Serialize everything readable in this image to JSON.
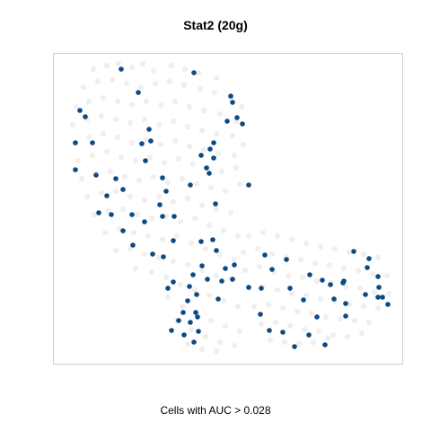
{
  "chart_data": {
    "type": "scatter",
    "title": "Stat2 (20g)",
    "caption": "Cells with AUC > 0.028",
    "grid": false,
    "colors": {
      "background_cells": "#eaeaea",
      "high_auc_cells": "#0c4a84"
    },
    "series": [
      {
        "role": "cells_below_threshold",
        "points": [
          [
            103,
            76
          ],
          [
            118,
            72
          ],
          [
            131,
            70
          ],
          [
            146,
            74
          ],
          [
            158,
            70
          ],
          [
            170,
            78
          ],
          [
            190,
            72
          ],
          [
            205,
            76
          ],
          [
            220,
            80
          ],
          [
            240,
            86
          ],
          [
            92,
            96
          ],
          [
            108,
            90
          ],
          [
            124,
            88
          ],
          [
            140,
            92
          ],
          [
            156,
            96
          ],
          [
            172,
            92
          ],
          [
            188,
            90
          ],
          [
            204,
            94
          ],
          [
            222,
            98
          ],
          [
            238,
            102
          ],
          [
            256,
            108
          ],
          [
            268,
            118
          ],
          [
            84,
            118
          ],
          [
            98,
            112
          ],
          [
            114,
            108
          ],
          [
            130,
            112
          ],
          [
            146,
            116
          ],
          [
            162,
            112
          ],
          [
            178,
            116
          ],
          [
            194,
            112
          ],
          [
            210,
            118
          ],
          [
            226,
            122
          ],
          [
            244,
            126
          ],
          [
            262,
            134
          ],
          [
            80,
            138
          ],
          [
            96,
            132
          ],
          [
            112,
            128
          ],
          [
            128,
            132
          ],
          [
            144,
            136
          ],
          [
            160,
            132
          ],
          [
            176,
            138
          ],
          [
            192,
            134
          ],
          [
            208,
            140
          ],
          [
            224,
            144
          ],
          [
            240,
            148
          ],
          [
            258,
            150
          ],
          [
            270,
            160
          ],
          [
            82,
            158
          ],
          [
            98,
            152
          ],
          [
            114,
            148
          ],
          [
            130,
            152
          ],
          [
            146,
            158
          ],
          [
            162,
            154
          ],
          [
            178,
            160
          ],
          [
            194,
            156
          ],
          [
            210,
            162
          ],
          [
            226,
            166
          ],
          [
            242,
            170
          ],
          [
            260,
            172
          ],
          [
            86,
            178
          ],
          [
            102,
            172
          ],
          [
            118,
            168
          ],
          [
            134,
            174
          ],
          [
            150,
            178
          ],
          [
            166,
            174
          ],
          [
            182,
            180
          ],
          [
            198,
            176
          ],
          [
            214,
            182
          ],
          [
            230,
            186
          ],
          [
            246,
            190
          ],
          [
            262,
            186
          ],
          [
            90,
            198
          ],
          [
            106,
            192
          ],
          [
            122,
            190
          ],
          [
            138,
            196
          ],
          [
            154,
            200
          ],
          [
            170,
            196
          ],
          [
            186,
            202
          ],
          [
            202,
            198
          ],
          [
            218,
            204
          ],
          [
            234,
            208
          ],
          [
            250,
            212
          ],
          [
            266,
            204
          ],
          [
            96,
            218
          ],
          [
            112,
            214
          ],
          [
            128,
            212
          ],
          [
            144,
            218
          ],
          [
            160,
            222
          ],
          [
            176,
            218
          ],
          [
            192,
            224
          ],
          [
            208,
            220
          ],
          [
            224,
            228
          ],
          [
            240,
            232
          ],
          [
            256,
            236
          ],
          [
            104,
            238
          ],
          [
            120,
            234
          ],
          [
            136,
            232
          ],
          [
            152,
            238
          ],
          [
            168,
            242
          ],
          [
            184,
            240
          ],
          [
            200,
            246
          ],
          [
            216,
            242
          ],
          [
            232,
            250
          ],
          [
            248,
            256
          ],
          [
            264,
            262
          ],
          [
            116,
            258
          ],
          [
            132,
            254
          ],
          [
            148,
            258
          ],
          [
            164,
            262
          ],
          [
            180,
            266
          ],
          [
            196,
            262
          ],
          [
            212,
            270
          ],
          [
            228,
            276
          ],
          [
            244,
            282
          ],
          [
            260,
            288
          ],
          [
            128,
            278
          ],
          [
            144,
            276
          ],
          [
            160,
            282
          ],
          [
            176,
            286
          ],
          [
            192,
            290
          ],
          [
            208,
            294
          ],
          [
            224,
            300
          ],
          [
            240,
            306
          ],
          [
            256,
            310
          ],
          [
            150,
            298
          ],
          [
            168,
            302
          ],
          [
            184,
            308
          ],
          [
            200,
            316
          ],
          [
            216,
            322
          ],
          [
            232,
            328
          ],
          [
            248,
            334
          ],
          [
            264,
            340
          ],
          [
            186,
            330
          ],
          [
            202,
            340
          ],
          [
            218,
            348
          ],
          [
            234,
            356
          ],
          [
            250,
            362
          ],
          [
            266,
            368
          ],
          [
            196,
            356
          ],
          [
            212,
            366
          ],
          [
            228,
            374
          ],
          [
            244,
            380
          ],
          [
            260,
            384
          ],
          [
            208,
            382
          ],
          [
            224,
            388
          ],
          [
            240,
            390
          ],
          [
            276,
            262
          ],
          [
            292,
            258
          ],
          [
            308,
            262
          ],
          [
            324,
            266
          ],
          [
            340,
            270
          ],
          [
            356,
            274
          ],
          [
            372,
            276
          ],
          [
            388,
            280
          ],
          [
            404,
            282
          ],
          [
            420,
            286
          ],
          [
            270,
            280
          ],
          [
            286,
            276
          ],
          [
            302,
            282
          ],
          [
            318,
            286
          ],
          [
            334,
            288
          ],
          [
            350,
            292
          ],
          [
            366,
            294
          ],
          [
            382,
            298
          ],
          [
            398,
            300
          ],
          [
            414,
            304
          ],
          [
            430,
            306
          ],
          [
            272,
            300
          ],
          [
            288,
            296
          ],
          [
            304,
            302
          ],
          [
            320,
            306
          ],
          [
            336,
            308
          ],
          [
            352,
            312
          ],
          [
            368,
            314
          ],
          [
            384,
            318
          ],
          [
            400,
            320
          ],
          [
            416,
            324
          ],
          [
            432,
            326
          ],
          [
            276,
            320
          ],
          [
            292,
            318
          ],
          [
            308,
            322
          ],
          [
            324,
            326
          ],
          [
            340,
            328
          ],
          [
            356,
            332
          ],
          [
            372,
            334
          ],
          [
            388,
            338
          ],
          [
            404,
            340
          ],
          [
            420,
            342
          ],
          [
            282,
            340
          ],
          [
            298,
            338
          ],
          [
            314,
            342
          ],
          [
            330,
            346
          ],
          [
            346,
            348
          ],
          [
            362,
            352
          ],
          [
            378,
            354
          ],
          [
            394,
            356
          ],
          [
            410,
            358
          ],
          [
            290,
            360
          ],
          [
            306,
            358
          ],
          [
            322,
            362
          ],
          [
            338,
            366
          ],
          [
            354,
            368
          ],
          [
            370,
            372
          ],
          [
            386,
            374
          ],
          [
            402,
            370
          ],
          [
            300,
            378
          ],
          [
            316,
            380
          ],
          [
            332,
            382
          ],
          [
            348,
            380
          ],
          [
            364,
            376
          ]
        ]
      },
      {
        "role": "cells_above_threshold",
        "points": [
          [
            134,
            76
          ],
          [
            215,
            80
          ],
          [
            153,
            102
          ],
          [
            88,
            122
          ],
          [
            256,
            106
          ],
          [
            258,
            113
          ],
          [
            94,
            129
          ],
          [
            263,
            130
          ],
          [
            269,
            137
          ],
          [
            252,
            134
          ],
          [
            165,
            143
          ],
          [
            167,
            156
          ],
          [
            157,
            159
          ],
          [
            83,
            158
          ],
          [
            102,
            158
          ],
          [
            237,
            158
          ],
          [
            233,
            165
          ],
          [
            223,
            172
          ],
          [
            237,
            175
          ],
          [
            229,
            186
          ],
          [
            161,
            178
          ],
          [
            83,
            188
          ],
          [
            232,
            192
          ],
          [
            106,
            194
          ],
          [
            180,
            197
          ],
          [
            211,
            205
          ],
          [
            128,
            198
          ],
          [
            136,
            210
          ],
          [
            184,
            212
          ],
          [
            276,
            205
          ],
          [
            118,
            217
          ],
          [
            109,
            236
          ],
          [
            123,
            238
          ],
          [
            146,
            238
          ],
          [
            160,
            246
          ],
          [
            180,
            240
          ],
          [
            193,
            240
          ],
          [
            177,
            227
          ],
          [
            239,
            226
          ],
          [
            136,
            256
          ],
          [
            147,
            272
          ],
          [
            169,
            282
          ],
          [
            181,
            285
          ],
          [
            192,
            267
          ],
          [
            223,
            268
          ],
          [
            236,
            266
          ],
          [
            240,
            278
          ],
          [
            250,
            298
          ],
          [
            224,
            295
          ],
          [
            260,
            294
          ],
          [
            294,
            283
          ],
          [
            230,
            310
          ],
          [
            246,
            312
          ],
          [
            258,
            310
          ],
          [
            214,
            305
          ],
          [
            192,
            313
          ],
          [
            186,
            320
          ],
          [
            210,
            318
          ],
          [
            208,
            334
          ],
          [
            218,
            327
          ],
          [
            242,
            332
          ],
          [
            217,
            347
          ],
          [
            203,
            347
          ],
          [
            198,
            356
          ],
          [
            190,
            367
          ],
          [
            204,
            372
          ],
          [
            215,
            380
          ],
          [
            220,
            368
          ],
          [
            276,
            319
          ],
          [
            290,
            320
          ],
          [
            302,
            299
          ],
          [
            318,
            288
          ],
          [
            322,
            320
          ],
          [
            344,
            305
          ],
          [
            358,
            311
          ],
          [
            367,
            316
          ],
          [
            371,
            332
          ],
          [
            381,
            314
          ],
          [
            384,
            337
          ],
          [
            393,
            279
          ],
          [
            408,
            297
          ],
          [
            410,
            287
          ],
          [
            420,
            307
          ],
          [
            421,
            319
          ],
          [
            425,
            330
          ],
          [
            431,
            338
          ],
          [
            289,
            349
          ],
          [
            299,
            367
          ],
          [
            327,
            385
          ],
          [
            343,
            372
          ],
          [
            352,
            352
          ],
          [
            384,
            351
          ],
          [
            382,
            312
          ],
          [
            406,
            327
          ],
          [
            420,
            330
          ],
          [
            361,
            383
          ],
          [
            314,
            369
          ],
          [
            337,
            333
          ],
          [
            211,
            358
          ],
          [
            219,
            352
          ]
        ]
      }
    ]
  }
}
